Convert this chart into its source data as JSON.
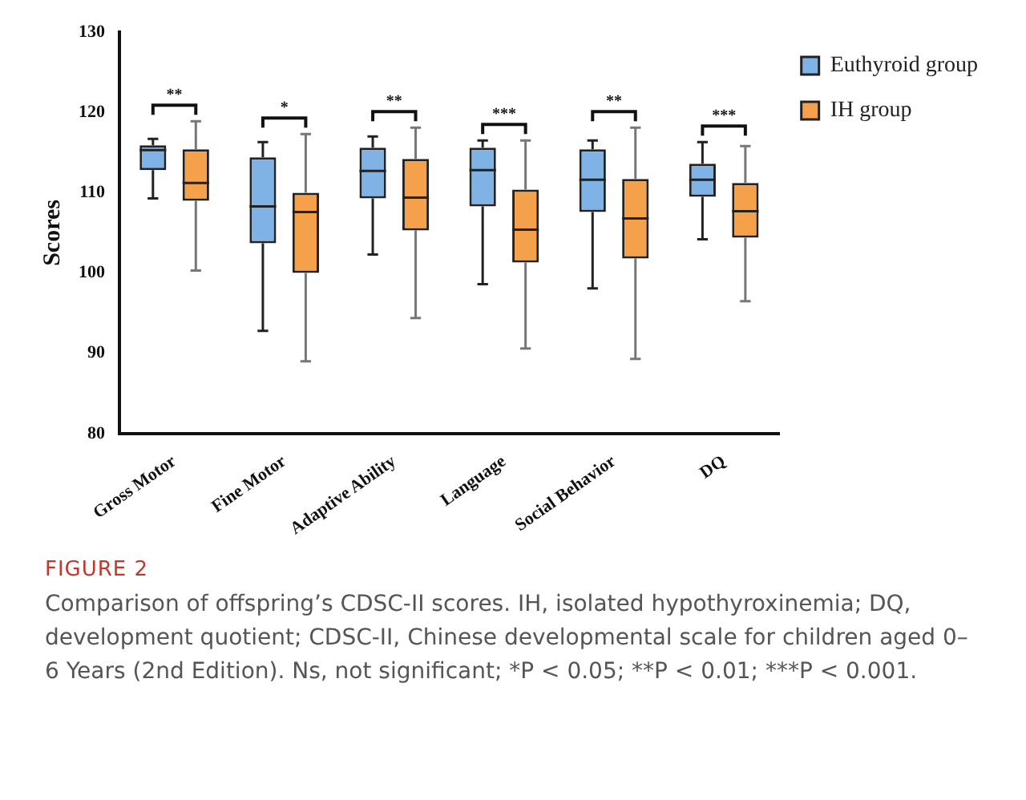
{
  "chart_data": {
    "type": "box",
    "ylabel": "Scores",
    "categories": [
      "Gross Motor",
      "Fine Motor",
      "Adaptive Ability",
      "Language",
      "Social Behavior",
      "DQ"
    ],
    "ylim": [
      80,
      130
    ],
    "yticks": [
      80,
      90,
      100,
      110,
      120,
      130
    ],
    "grid": false,
    "legend": "top right",
    "series": [
      {
        "name": "Euthyroid group",
        "color": "#7fb2e5",
        "boxes": [
          {
            "low": 109.3,
            "q1": 112.8,
            "median": 115.3,
            "q3": 115.9,
            "high": 116.7
          },
          {
            "low": 92.8,
            "q1": 103.7,
            "median": 108.3,
            "q3": 114.4,
            "high": 116.3
          },
          {
            "low": 102.3,
            "q1": 109.3,
            "median": 112.7,
            "q3": 115.6,
            "high": 117.0
          },
          {
            "low": 98.6,
            "q1": 108.3,
            "median": 112.8,
            "q3": 115.6,
            "high": 116.5
          },
          {
            "low": 98.1,
            "q1": 107.6,
            "median": 111.6,
            "q3": 115.4,
            "high": 116.5
          },
          {
            "low": 104.2,
            "q1": 109.5,
            "median": 111.6,
            "q3": 113.6,
            "high": 116.3
          }
        ]
      },
      {
        "name": "IH group",
        "color": "#f5a04a",
        "boxes": [
          {
            "low": 100.3,
            "q1": 109.0,
            "median": 111.2,
            "q3": 115.4,
            "high": 118.9
          },
          {
            "low": 89.0,
            "q1": 100.0,
            "median": 107.6,
            "q3": 110.0,
            "high": 117.3
          },
          {
            "low": 94.4,
            "q1": 105.3,
            "median": 109.4,
            "q3": 114.2,
            "high": 118.1
          },
          {
            "low": 90.6,
            "q1": 101.3,
            "median": 105.4,
            "q3": 110.4,
            "high": 116.5
          },
          {
            "low": 89.3,
            "q1": 101.8,
            "median": 106.8,
            "q3": 111.7,
            "high": 118.1
          },
          {
            "low": 96.5,
            "q1": 104.4,
            "median": 107.7,
            "q3": 111.2,
            "high": 115.8
          }
        ]
      }
    ],
    "annotations": [
      "**",
      "*",
      "**",
      "***",
      "**",
      "***",
      "FIGURE 2",
      "Comparison of offspring’s CDSC-II scores. IH, isolated hypothyroxinemia; DQ, development quotient; CDSC-II, Chinese developmental scale for children aged 0–6 Years (2nd Edition). Ns, not significant; *P < 0.05; **P < 0.01; ***P < 0.001."
    ]
  }
}
